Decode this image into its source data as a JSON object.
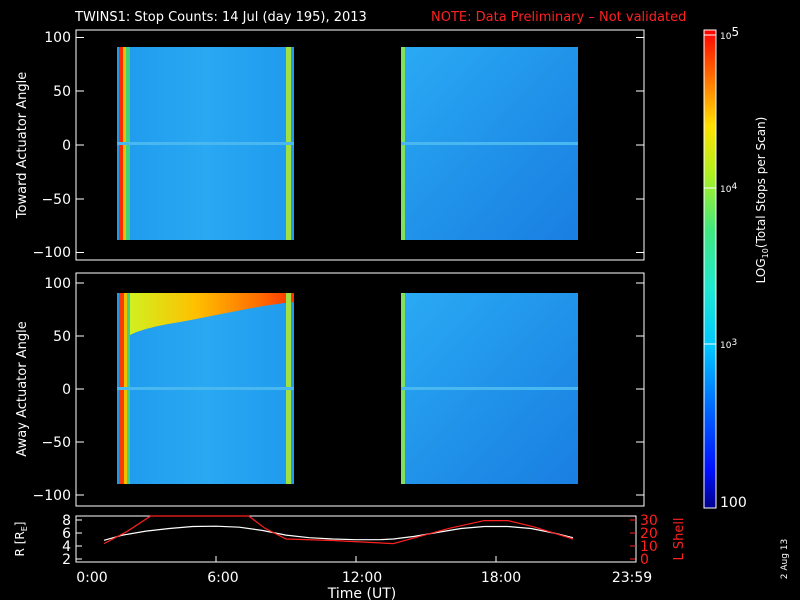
{
  "header": {
    "title": "TWINS1: Stop Counts: 14 Jul (day 195), 2013",
    "note": "NOTE: Data Preliminary – Not validated",
    "note_color": "#ff2020"
  },
  "chart_data": [
    {
      "type": "heatmap",
      "ylabel": "Toward Actuator Angle",
      "ylim": [
        -110,
        110
      ],
      "yticks": [
        "100",
        "50",
        "0",
        "−50",
        "−100"
      ],
      "ytick_values": [
        100,
        50,
        0,
        -50,
        -100
      ],
      "xlim": [
        0,
        24
      ],
      "data_coverage_ut": [
        [
          1.15,
          9.0
        ],
        [
          13.55,
          21.3
        ]
      ],
      "angle_range": [
        -90,
        90
      ],
      "features": "mostly ~1e3 counts; red/yellow band near 1.2-1.5 UT; green/yellow edges near 9 UT and 13.6 UT"
    },
    {
      "type": "heatmap",
      "ylabel": "Away Actuator Angle",
      "ylim": [
        -110,
        110
      ],
      "yticks": [
        "100",
        "50",
        "0",
        "−50",
        "−100"
      ],
      "ytick_values": [
        100,
        50,
        0,
        -50,
        -100
      ],
      "xlim": [
        0,
        24
      ],
      "data_coverage_ut": [
        [
          1.15,
          9.0
        ],
        [
          13.55,
          21.3
        ]
      ],
      "angle_range": [
        -90,
        90
      ],
      "features": "orange/red band at 70-90 deg from ~2 to 9 UT; red near 1.2-1.5 UT; lower values mid-range"
    },
    {
      "type": "line",
      "ylabel_left": "R [R",
      "ylabel_left_sub": "E",
      "ylabel_left_tail": "]",
      "ylabel_right": "L Shell",
      "ylim_left": [
        1.5,
        8.5
      ],
      "ylim_right": [
        0,
        30
      ],
      "yticks_left": [
        "8",
        "6",
        "4",
        "2"
      ],
      "ytick_values_left": [
        8,
        6,
        4,
        2
      ],
      "yticks_right": [
        "30",
        "20",
        "10",
        "0"
      ],
      "ytick_values_right": [
        30,
        20,
        10,
        0
      ],
      "xlabel": "Time (UT)",
      "xticks": [
        "0:00",
        "6:00",
        "12:00",
        "18:00",
        "23:59"
      ],
      "xtick_values": [
        0,
        6,
        12,
        18,
        23.98
      ],
      "series": [
        {
          "name": "R [RE]",
          "color": "#ffffff",
          "x": [
            1.2,
            2,
            3,
            4,
            5,
            6,
            7,
            8,
            9,
            10,
            11,
            12,
            13,
            13.6,
            14.5,
            15.5,
            16.5,
            17.5,
            18.5,
            19.5,
            20.5,
            21.3
          ],
          "y": [
            4.8,
            5.6,
            6.2,
            6.6,
            6.9,
            6.95,
            6.8,
            6.3,
            5.6,
            5.2,
            5.0,
            4.9,
            4.9,
            5.0,
            5.4,
            6.0,
            6.6,
            6.9,
            6.9,
            6.6,
            5.9,
            5.2
          ]
        },
        {
          "name": "L Shell",
          "color": "#ff2020",
          "x": [
            1.2,
            2.2,
            3.2,
            7.4,
            8.1,
            9.0,
            11.0,
            13.6,
            16.0,
            17.5,
            18.5,
            19.6,
            21.3
          ],
          "y": [
            12,
            20,
            30,
            30,
            22,
            15,
            14,
            12,
            22,
            27,
            27,
            23,
            15
          ]
        }
      ]
    }
  ],
  "colorbar": {
    "label_pre": "LOG",
    "label_sub": "10",
    "label_post": "(Total Stops per Scan)",
    "ticks": [
      {
        "value": 5,
        "base": "10",
        "exp": "5"
      },
      {
        "value": 4,
        "base": "10",
        "exp": "4"
      },
      {
        "value": 3,
        "base": "10",
        "exp": "3"
      }
    ],
    "bottom_label": "100",
    "range_log": [
      2,
      5
    ]
  },
  "footer": {
    "date_stamp": "2 Aug 13"
  },
  "colors": {
    "background": "#000000",
    "axis": "#ffffff",
    "lshell": "#ff2020"
  }
}
